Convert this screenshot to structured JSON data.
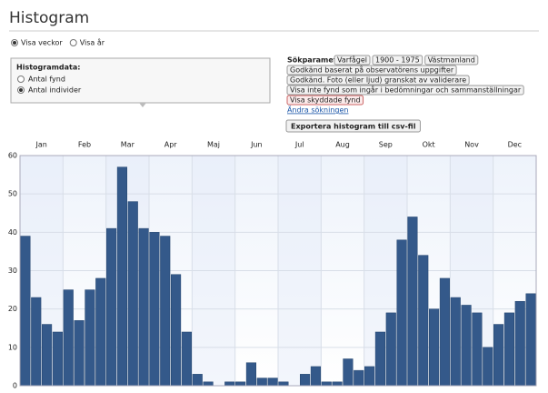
{
  "header": {
    "title": "Histogram"
  },
  "view_options": [
    "Visa veckor",
    "Visa år"
  ],
  "selected_view": 0,
  "histogram_panel": {
    "title": "Histogramdata:",
    "options": [
      "Antal fynd",
      "Antal individer"
    ],
    "selected": 1
  },
  "search_params": {
    "label": "Sökparametrar:",
    "tags": [
      [
        "Varfågel",
        "1900 - 1975",
        "Västmanland"
      ],
      [
        "Godkänd baserat på observatörens uppgifter"
      ],
      [
        "Godkänd. Foto (eller ljud) granskat av validerare"
      ],
      [
        "Visa inte fynd som ingår i bedömningar och sammanställningar"
      ],
      [
        "Visa skyddade fynd"
      ]
    ]
  },
  "change_link": "Ändra sökningen",
  "export_button": "Exportera histogram till csv-fil",
  "chart_data": {
    "type": "bar",
    "months": [
      "Jan",
      "Feb",
      "Mar",
      "Apr",
      "Maj",
      "Jun",
      "Jul",
      "Aug",
      "Sep",
      "Okt",
      "Nov",
      "Dec"
    ],
    "values": [
      39,
      23,
      16,
      14,
      25,
      17,
      25,
      28,
      41,
      57,
      48,
      41,
      40,
      39,
      29,
      14,
      3,
      1,
      0,
      1,
      1,
      6,
      2,
      2,
      1,
      0,
      3,
      5,
      1,
      1,
      7,
      4,
      5,
      14,
      19,
      38,
      44,
      34,
      20,
      28,
      23,
      21,
      19,
      10,
      16,
      19,
      22,
      24
    ],
    "color": "#34598a",
    "ylim": [
      0,
      60
    ],
    "yticks": [
      0,
      10,
      20,
      30,
      40,
      50,
      60
    ],
    "grid": true
  }
}
